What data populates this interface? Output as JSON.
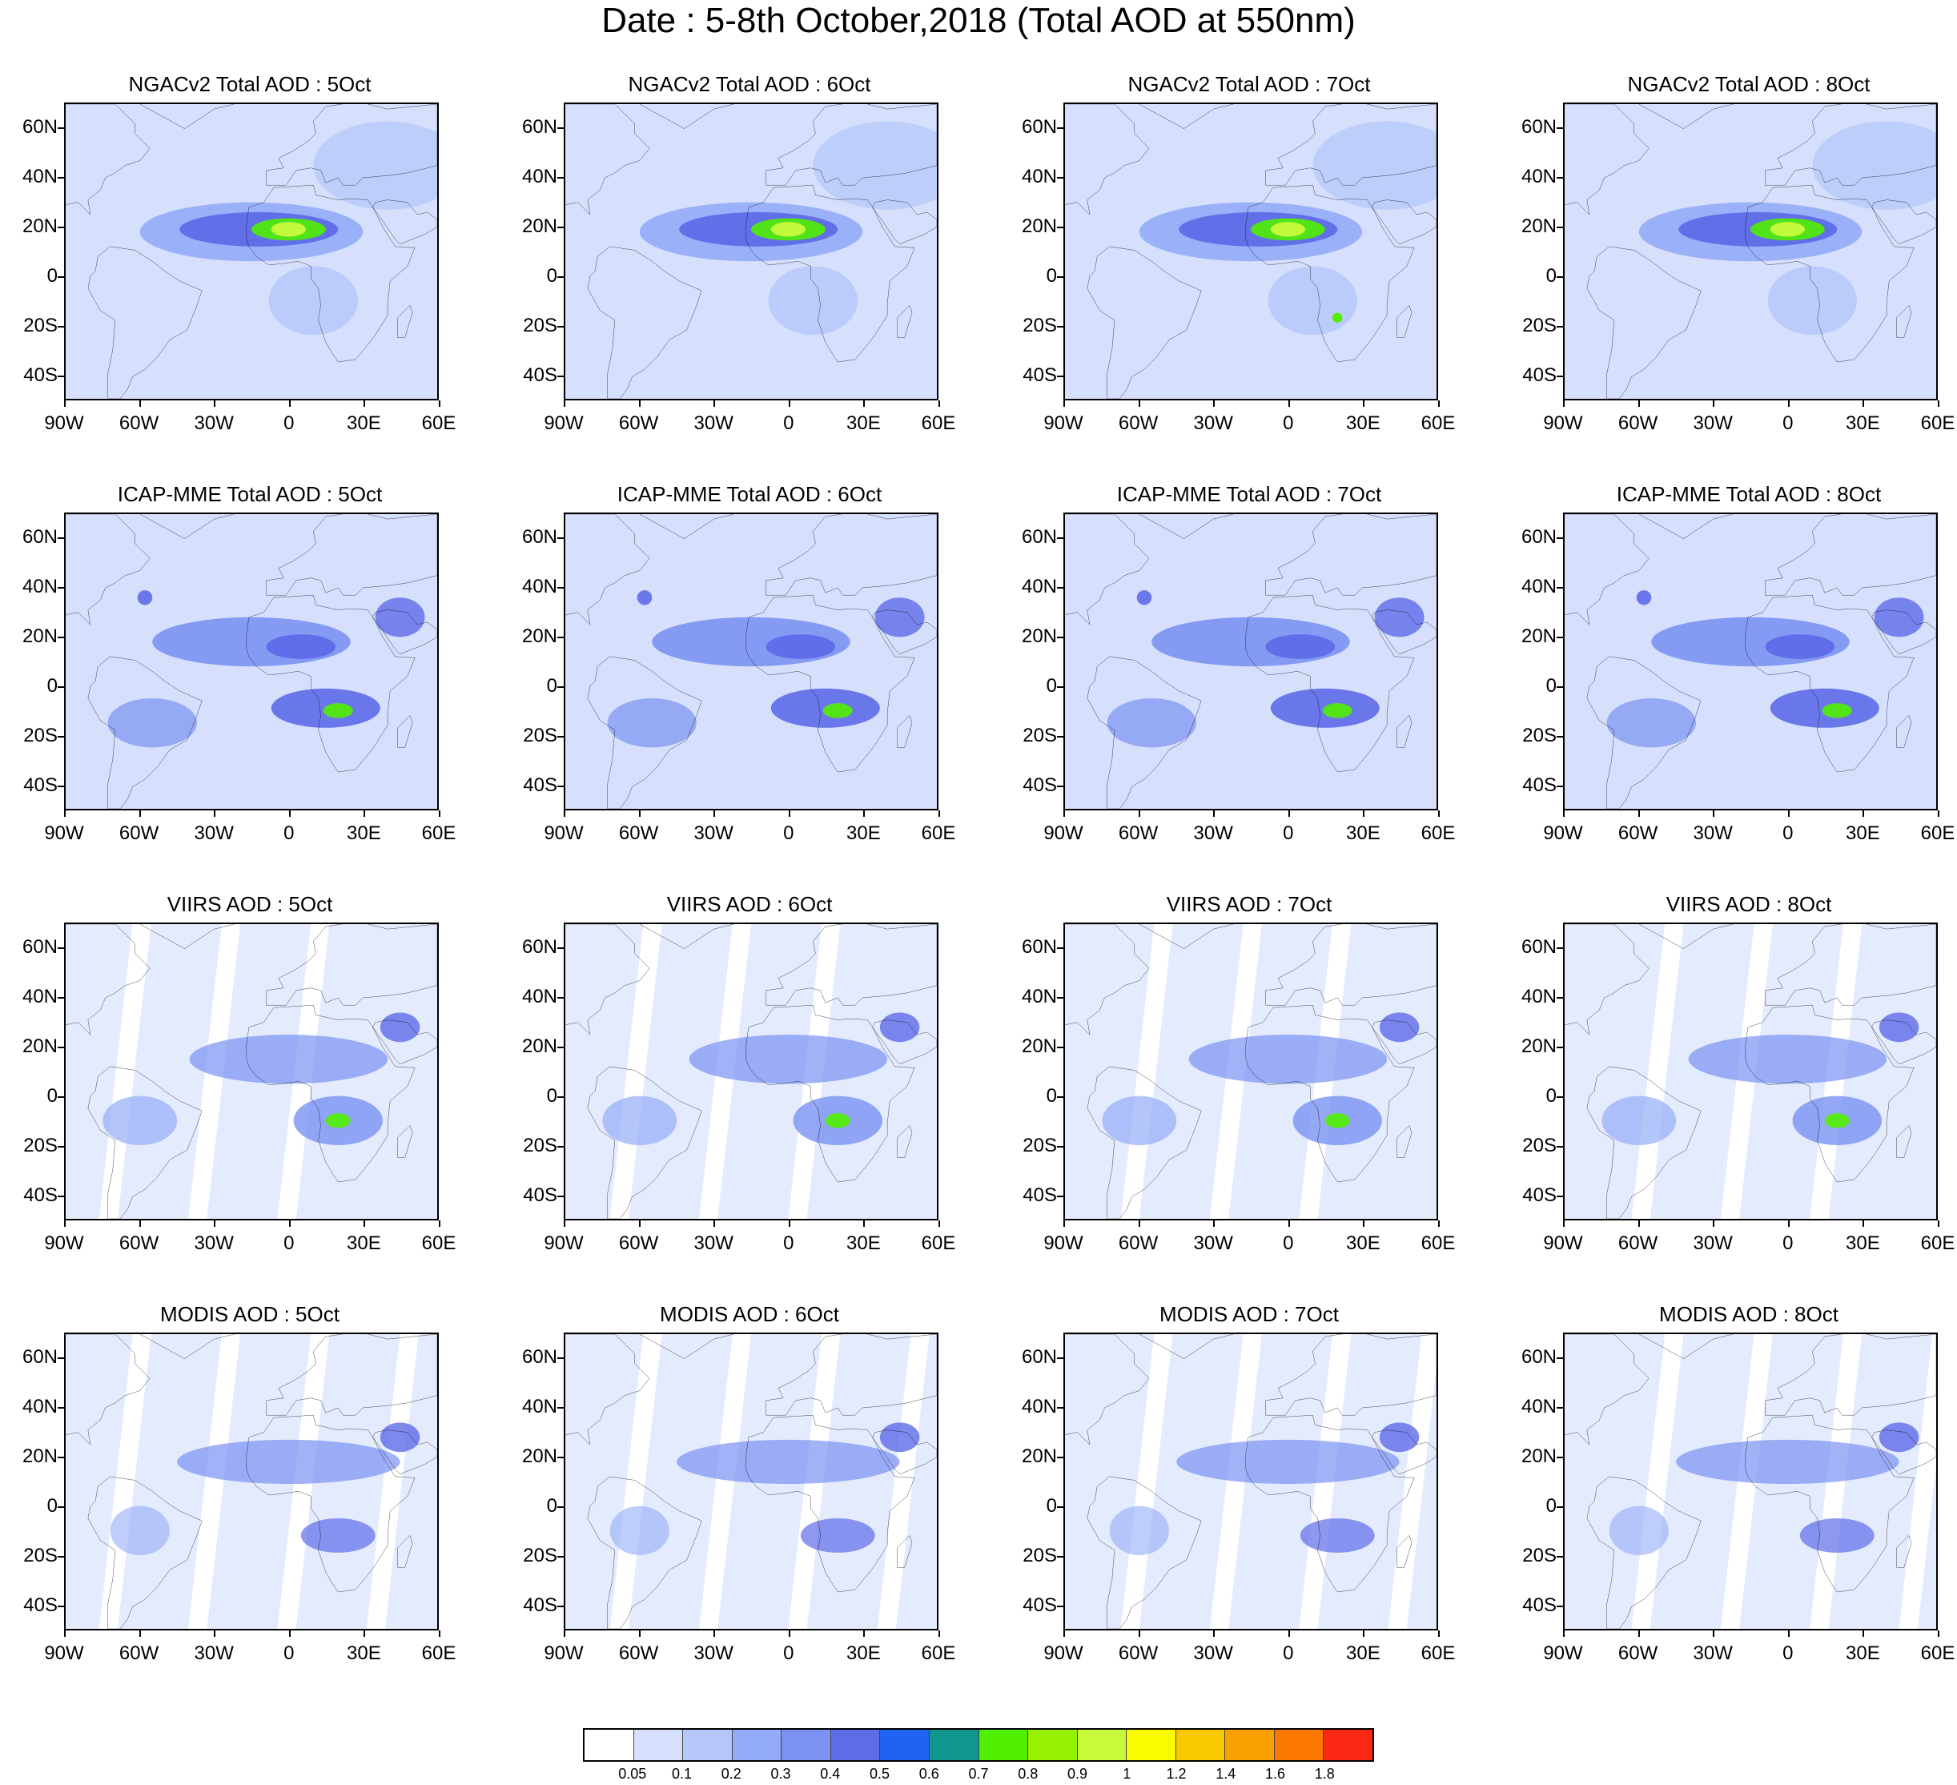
{
  "title": "Date : 5-8th October,2018 (Total AOD at 550nm)",
  "axes": {
    "lon_ticks": [
      "90W",
      "60W",
      "30W",
      "0",
      "30E",
      "60E"
    ],
    "lat_ticks": [
      "60N",
      "40N",
      "20N",
      "0",
      "20S",
      "40S"
    ],
    "lon_range": [
      -90,
      60
    ],
    "lat_range": [
      -50,
      70
    ]
  },
  "panels": [
    {
      "title": "NGACv2 Total AOD : 5Oct"
    },
    {
      "title": "NGACv2 Total AOD : 6Oct"
    },
    {
      "title": "NGACv2 Total AOD : 7Oct"
    },
    {
      "title": "NGACv2 Total AOD : 8Oct"
    },
    {
      "title": "ICAP-MME Total AOD : 5Oct"
    },
    {
      "title": "ICAP-MME Total AOD : 6Oct"
    },
    {
      "title": "ICAP-MME Total AOD : 7Oct"
    },
    {
      "title": "ICAP-MME Total AOD : 8Oct"
    },
    {
      "title": "VIIRS AOD : 5Oct"
    },
    {
      "title": "VIIRS AOD : 6Oct"
    },
    {
      "title": "VIIRS AOD : 7Oct"
    },
    {
      "title": "VIIRS AOD : 8Oct"
    },
    {
      "title": "MODIS AOD : 5Oct"
    },
    {
      "title": "MODIS AOD : 6Oct"
    },
    {
      "title": "MODIS AOD : 7Oct"
    },
    {
      "title": "MODIS AOD : 8Oct"
    }
  ],
  "colorbar": {
    "colors": [
      "#ffffff",
      "#d6e0fc",
      "#b4c6fa",
      "#94acf8",
      "#7b92f2",
      "#5e6ce8",
      "#1e64f0",
      "#10968c",
      "#50f000",
      "#96f000",
      "#c8fa3c",
      "#fafa00",
      "#fac800",
      "#faa000",
      "#fa7800",
      "#fa2814"
    ],
    "labels": [
      "0.05",
      "0.1",
      "0.2",
      "0.3",
      "0.4",
      "0.5",
      "0.6",
      "0.7",
      "0.8",
      "0.9",
      "1",
      "1.2",
      "1.4",
      "1.6",
      "1.8"
    ]
  }
}
